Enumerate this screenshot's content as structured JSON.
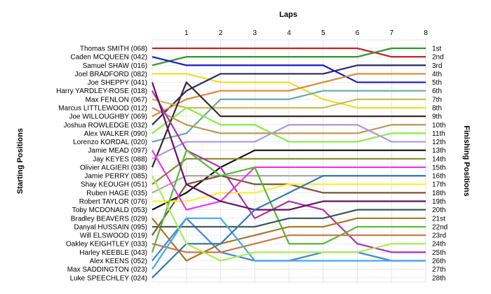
{
  "chart_data": {
    "type": "line",
    "title": "",
    "xlabel": "Laps",
    "ylabel_left": "Starting Positions",
    "ylabel_right": "Finishing Positions",
    "x": [
      0,
      1,
      2,
      3,
      4,
      5,
      6,
      7,
      8
    ],
    "x_tick_labels": [
      "1",
      "2",
      "3",
      "4",
      "5",
      "6",
      "7",
      "8"
    ],
    "y_range": [
      1,
      28
    ],
    "grid": true,
    "finishing_labels": [
      "1st",
      "2nd",
      "3rd",
      "4th",
      "5th",
      "6th",
      "7th",
      "8th",
      "9th",
      "10th",
      "11th",
      "12th",
      "13th",
      "14th",
      "15th",
      "16th",
      "17th",
      "18th",
      "19th",
      "20th",
      "21st",
      "22nd",
      "23rd",
      "24th",
      "25th",
      "26th",
      "27th",
      "28th"
    ],
    "series": [
      {
        "name": "Thomas SMITH (068)",
        "color": "#cc2222",
        "values": [
          1,
          1,
          1,
          1,
          1,
          1,
          1,
          2,
          2
        ]
      },
      {
        "name": "Samuel SHAW (016)",
        "color": "#2a9a2a",
        "values": [
          3,
          2,
          2,
          2,
          2,
          2,
          2,
          1,
          1
        ]
      },
      {
        "name": "Caden MCQUEEN (042)",
        "color": "#1a1acc",
        "values": [
          2,
          3,
          3,
          3,
          3,
          3,
          5,
          5,
          5
        ]
      },
      {
        "name": "Joel BRADFORD (082)",
        "color": "#eedd22",
        "values": [
          4,
          4,
          5,
          5,
          5,
          7,
          8,
          8,
          8
        ]
      },
      {
        "name": "Joshua ROWLEDGE (032)",
        "color": "#2a2a6a",
        "values": [
          10,
          6,
          4,
          4,
          4,
          4,
          3,
          3,
          3
        ]
      },
      {
        "name": "Joe WILLOUGHBY (069)",
        "color": "#dd8833",
        "values": [
          9,
          7,
          6,
          6,
          6,
          5,
          4,
          4,
          4
        ]
      },
      {
        "name": "Lorenzo KORDAL (020)",
        "color": "#66aaaa",
        "values": [
          12,
          11,
          7,
          7,
          7,
          6,
          6,
          6,
          6
        ]
      },
      {
        "name": "Max FENLON (067)",
        "color": "#ccbb55",
        "values": [
          7,
          8,
          8,
          8,
          8,
          8,
          7,
          7,
          7
        ]
      },
      {
        "name": "Alex WALKER (090)",
        "color": "#88ee44",
        "values": [
          11,
          8,
          10,
          10,
          12,
          12,
          12,
          11,
          11
        ]
      },
      {
        "name": "Olivier ALGIERI (038)",
        "color": "#3a2a2a",
        "values": [
          15,
          5,
          9,
          9,
          9,
          9,
          9,
          9,
          9
        ]
      },
      {
        "name": "Marcus LITTLEWOOD (012)",
        "color": "#bb9955",
        "values": [
          8,
          10,
          11,
          11,
          11,
          11,
          11,
          10,
          10
        ]
      },
      {
        "name": "Jay KEYES (088)",
        "color": "#aa99dd",
        "values": [
          14,
          12,
          12,
          12,
          10,
          10,
          10,
          12,
          12
        ]
      },
      {
        "name": "Toby MCDONALD (053)",
        "color": "#111111",
        "values": [
          20,
          18,
          15,
          13,
          13,
          13,
          13,
          13,
          13
        ]
      },
      {
        "name": "Shay KEOUGH (051)",
        "color": "#888833",
        "values": [
          17,
          14,
          14,
          14,
          14,
          14,
          14,
          14,
          14
        ]
      },
      {
        "name": "Harry YARDLEY-ROSE (018)",
        "color": "#aa33aa",
        "values": [
          6,
          13,
          15,
          21,
          19,
          20,
          24,
          25,
          25
        ]
      },
      {
        "name": "Alex KEENS (052)",
        "color": "#4488cc",
        "values": [
          26,
          21,
          25,
          26,
          26,
          25,
          25,
          26,
          26
        ]
      },
      {
        "name": "Ruben HAGE (035)",
        "color": "#aaaaaa",
        "values": [
          18,
          16,
          16,
          16,
          16,
          16,
          16,
          16,
          16
        ]
      },
      {
        "name": "Will ELSWOOD (019)",
        "color": "#7a5533",
        "values": [
          23,
          17,
          16,
          17,
          17,
          18,
          18,
          18,
          18
        ]
      },
      {
        "name": "Robert TAYLOR (076)",
        "color": "#ffee33",
        "values": [
          19,
          19,
          18,
          18,
          17,
          17,
          17,
          17,
          17
        ]
      },
      {
        "name": "Jamie MEAD (097)",
        "color": "#ee33ee",
        "values": [
          13,
          20,
          19,
          15,
          15,
          15,
          15,
          15,
          15
        ]
      },
      {
        "name": "Harley KEEBLE (043)",
        "color": "#55bb33",
        "values": [
          25,
          13,
          16,
          15,
          24,
          24,
          22,
          22,
          22
        ]
      },
      {
        "name": "Danyal HUSSAIN (095)",
        "color": "#3a5555",
        "values": [
          22,
          22,
          22,
          22,
          21,
          21,
          20,
          20,
          20
        ]
      },
      {
        "name": "Bradley BEAVERS (029)",
        "color": "#aa7722",
        "values": [
          21,
          26,
          24,
          23,
          22,
          22,
          21,
          21,
          21
        ]
      },
      {
        "name": "Oakley KEIGHTLEY (033)",
        "color": "#cc7744",
        "values": [
          24,
          25,
          25,
          24,
          23,
          23,
          23,
          23,
          23
        ]
      },
      {
        "name": "Joe SHEPPY (041)",
        "color": "#661166",
        "values": [
          5,
          17,
          19,
          20,
          20,
          19,
          19,
          19,
          19
        ]
      },
      {
        "name": "Max SADDINGTON (023)",
        "color": "#44aaee",
        "values": [
          27,
          21,
          21,
          26,
          26,
          26,
          26,
          26,
          26
        ]
      },
      {
        "name": "Luke SPEECHLEY (024)",
        "color": "#3377bb",
        "values": [
          28,
          24,
          24,
          20,
          18,
          16,
          16,
          16,
          16
        ]
      },
      {
        "name": "Jamie PERRY (085)",
        "color": "#aaee55",
        "values": [
          16,
          24,
          26,
          25,
          25,
          25,
          25,
          24,
          24
        ]
      }
    ]
  }
}
